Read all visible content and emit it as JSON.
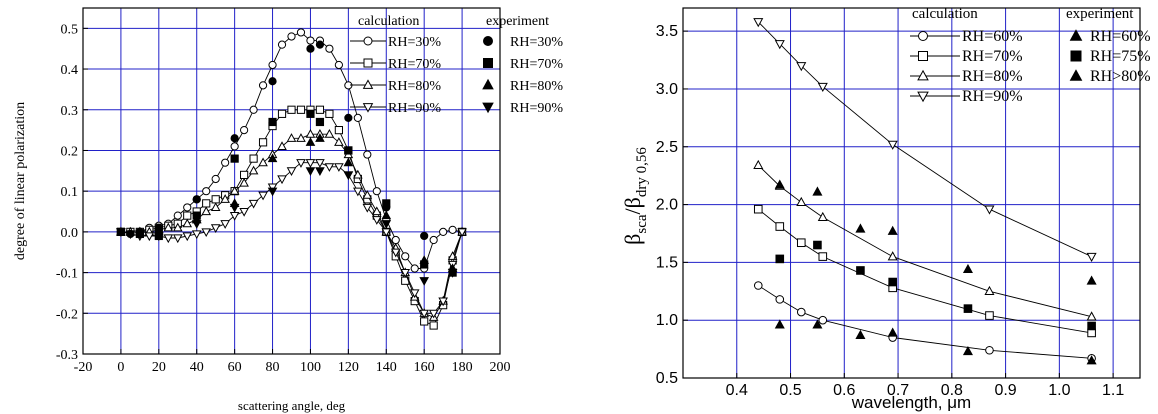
{
  "chart_data": [
    {
      "type": "line",
      "xlabel": "scattering angle, deg",
      "ylabel": "degree of linear polarization",
      "xlim": [
        -20,
        200
      ],
      "ylim": [
        -0.3,
        0.55
      ],
      "xticks": [
        -20,
        0,
        20,
        40,
        60,
        80,
        100,
        120,
        140,
        160,
        180,
        200
      ],
      "yticks": [
        -0.3,
        -0.2,
        -0.1,
        0.0,
        0.1,
        0.2,
        0.3,
        0.4,
        0.5
      ],
      "xtick_labels": [
        "-20",
        "0",
        "20",
        "40",
        "60",
        "80",
        "100",
        "120",
        "140",
        "160",
        "180",
        "200"
      ],
      "ytick_labels": [
        "-0.3",
        "-0.2",
        "-0.1",
        "0.0",
        "0.1",
        "0.2",
        "0.3",
        "0.4",
        "0.5"
      ],
      "grid": true,
      "legend_placement": "top-right",
      "legend_headers": [
        "calculation",
        "experiment"
      ],
      "series": [
        {
          "name": "RH=30%",
          "group": "calculation",
          "marker": "circle-open",
          "x": [
            0,
            5,
            10,
            15,
            20,
            25,
            30,
            35,
            40,
            45,
            50,
            55,
            60,
            65,
            70,
            75,
            80,
            85,
            90,
            95,
            100,
            105,
            110,
            115,
            120,
            125,
            130,
            135,
            140,
            145,
            150,
            155,
            160,
            165,
            170,
            175,
            180
          ],
          "y": [
            0.0,
            0.0,
            0.0,
            0.01,
            0.015,
            0.02,
            0.04,
            0.06,
            0.08,
            0.1,
            0.13,
            0.17,
            0.21,
            0.25,
            0.3,
            0.36,
            0.41,
            0.46,
            0.48,
            0.49,
            0.47,
            0.47,
            0.45,
            0.41,
            0.36,
            0.28,
            0.19,
            0.1,
            0.03,
            -0.02,
            -0.06,
            -0.09,
            -0.09,
            -0.02,
            0.0,
            0.005,
            0.0
          ]
        },
        {
          "name": "RH=70%",
          "group": "calculation",
          "marker": "square-open",
          "x": [
            0,
            5,
            10,
            15,
            20,
            25,
            30,
            35,
            40,
            45,
            50,
            55,
            60,
            65,
            70,
            75,
            80,
            85,
            90,
            95,
            100,
            105,
            110,
            115,
            120,
            125,
            130,
            135,
            140,
            145,
            150,
            155,
            160,
            165,
            170,
            175,
            180
          ],
          "y": [
            0.0,
            0.0,
            0.0,
            0.005,
            0.01,
            0.015,
            0.02,
            0.04,
            0.05,
            0.07,
            0.08,
            0.09,
            0.1,
            0.14,
            0.18,
            0.22,
            0.26,
            0.29,
            0.3,
            0.3,
            0.3,
            0.3,
            0.29,
            0.25,
            0.2,
            0.13,
            0.08,
            0.04,
            0.0,
            -0.06,
            -0.12,
            -0.17,
            -0.22,
            -0.23,
            -0.18,
            -0.07,
            0.0
          ]
        },
        {
          "name": "RH=80%",
          "group": "calculation",
          "marker": "triangle-up-open",
          "x": [
            0,
            5,
            10,
            15,
            20,
            25,
            30,
            35,
            40,
            45,
            50,
            55,
            60,
            65,
            70,
            75,
            80,
            85,
            90,
            95,
            100,
            105,
            110,
            115,
            120,
            125,
            130,
            135,
            140,
            145,
            150,
            155,
            160,
            165,
            170,
            175,
            180
          ],
          "y": [
            0.0,
            0.0,
            0.0,
            0.0,
            0.005,
            0.01,
            0.01,
            0.02,
            0.03,
            0.05,
            0.06,
            0.08,
            0.1,
            0.12,
            0.15,
            0.17,
            0.19,
            0.21,
            0.23,
            0.23,
            0.24,
            0.24,
            0.24,
            0.22,
            0.19,
            0.14,
            0.09,
            0.05,
            0.0,
            -0.04,
            -0.1,
            -0.16,
            -0.2,
            -0.21,
            -0.17,
            -0.06,
            0.0
          ]
        },
        {
          "name": "RH=90%",
          "group": "calculation",
          "marker": "triangle-down-open",
          "x": [
            0,
            5,
            10,
            15,
            20,
            25,
            30,
            35,
            40,
            45,
            50,
            55,
            60,
            65,
            70,
            75,
            80,
            85,
            90,
            95,
            100,
            105,
            110,
            115,
            120,
            125,
            130,
            135,
            140,
            145,
            150,
            155,
            160,
            165,
            170,
            175,
            180
          ],
          "y": [
            0.0,
            -0.005,
            -0.01,
            -0.01,
            -0.01,
            -0.015,
            -0.015,
            -0.01,
            -0.005,
            0.0,
            0.01,
            0.02,
            0.04,
            0.05,
            0.07,
            0.09,
            0.11,
            0.13,
            0.15,
            0.17,
            0.17,
            0.17,
            0.16,
            0.16,
            0.14,
            0.1,
            0.06,
            0.03,
            0.0,
            -0.05,
            -0.1,
            -0.15,
            -0.2,
            -0.2,
            -0.17,
            -0.08,
            0.0
          ]
        },
        {
          "name": "RH=30%",
          "group": "experiment",
          "marker": "circle",
          "x": [
            5,
            10,
            20,
            40,
            60,
            80,
            100,
            105,
            120,
            140,
            160
          ],
          "y": [
            -0.005,
            0.0,
            0.01,
            0.08,
            0.23,
            0.37,
            0.45,
            0.46,
            0.28,
            0.06,
            -0.01
          ]
        },
        {
          "name": "RH=70%",
          "group": "experiment",
          "marker": "square",
          "x": [
            0,
            10,
            20,
            40,
            60,
            80,
            100,
            105,
            120,
            140,
            160,
            175
          ],
          "y": [
            0.0,
            -0.005,
            -0.01,
            0.04,
            0.18,
            0.27,
            0.29,
            0.27,
            0.2,
            0.07,
            -0.08,
            -0.1
          ]
        },
        {
          "name": "RH=80%",
          "group": "experiment",
          "marker": "triangle-up",
          "x": [
            0,
            10,
            20,
            40,
            60,
            80,
            100,
            105,
            120,
            140,
            160,
            175
          ],
          "y": [
            0.0,
            0.0,
            0.0,
            0.03,
            0.07,
            0.18,
            0.22,
            0.23,
            0.17,
            0.04,
            -0.07,
            -0.09
          ]
        },
        {
          "name": "RH=90%",
          "group": "experiment",
          "marker": "triangle-down",
          "x": [
            0,
            10,
            20,
            40,
            60,
            80,
            100,
            105,
            120,
            140,
            160,
            175
          ],
          "y": [
            0.0,
            -0.005,
            0.0,
            0.02,
            0.06,
            0.1,
            0.15,
            0.15,
            0.14,
            0.02,
            -0.12,
            -0.1
          ]
        }
      ]
    },
    {
      "type": "line",
      "xlabel": "wavelength, μm",
      "ylabel_main": "β",
      "ylabel_sub1": "sca",
      "ylabel_slash": "/β",
      "ylabel_sub2": "dry 0,56",
      "xlim": [
        0.3,
        1.15
      ],
      "ylim": [
        0.5,
        3.7
      ],
      "xticks": [
        0.4,
        0.5,
        0.6,
        0.7,
        0.8,
        0.9,
        1.0,
        1.1
      ],
      "yticks": [
        0.5,
        1.0,
        1.5,
        2.0,
        2.5,
        3.0,
        3.5
      ],
      "xtick_labels": [
        "0.4",
        "0.5",
        "0.6",
        "0.7",
        "0.8",
        "0.9",
        "1.0",
        "1.1"
      ],
      "ytick_labels": [
        "0.5",
        "1.0",
        "1.5",
        "2.0",
        "2.5",
        "3.0",
        "3.5"
      ],
      "grid": true,
      "legend_placement": "top-right",
      "legend_headers": [
        "calculation",
        "experiment"
      ],
      "series": [
        {
          "name": "RH=60%",
          "group": "calculation",
          "marker": "circle-open",
          "x": [
            0.44,
            0.48,
            0.52,
            0.56,
            0.69,
            0.87,
            1.06
          ],
          "y": [
            1.3,
            1.18,
            1.07,
            1.0,
            0.85,
            0.74,
            0.67
          ]
        },
        {
          "name": "RH=70%",
          "group": "calculation",
          "marker": "square-open",
          "x": [
            0.44,
            0.48,
            0.52,
            0.56,
            0.69,
            0.87,
            1.06
          ],
          "y": [
            1.96,
            1.81,
            1.67,
            1.55,
            1.28,
            1.04,
            0.89
          ]
        },
        {
          "name": "RH=80%",
          "group": "calculation",
          "marker": "triangle-up-open",
          "x": [
            0.44,
            0.48,
            0.52,
            0.56,
            0.69,
            0.87,
            1.06
          ],
          "y": [
            2.34,
            2.16,
            2.02,
            1.89,
            1.55,
            1.25,
            1.03
          ]
        },
        {
          "name": "RH=90%",
          "group": "calculation",
          "marker": "triangle-down-open",
          "x": [
            0.44,
            0.48,
            0.52,
            0.56,
            0.69,
            0.87,
            1.06
          ],
          "y": [
            3.58,
            3.39,
            3.2,
            3.02,
            2.52,
            1.96,
            1.55
          ]
        },
        {
          "name": "RH=60%",
          "group": "experiment",
          "marker": "triangle-up",
          "x": [
            0.48,
            0.55,
            0.63,
            0.69,
            0.83,
            1.06
          ],
          "y": [
            0.96,
            0.96,
            0.87,
            0.89,
            0.73,
            0.65
          ]
        },
        {
          "name": "RH=75%",
          "group": "experiment",
          "marker": "square",
          "x": [
            0.48,
            0.55,
            0.63,
            0.69,
            0.83,
            1.06
          ],
          "y": [
            1.53,
            1.65,
            1.43,
            1.33,
            1.1,
            0.95
          ]
        },
        {
          "name": "RH>80%",
          "group": "experiment",
          "marker": "triangle-up",
          "x": [
            0.48,
            0.55,
            0.63,
            0.69,
            0.83,
            1.06
          ],
          "y": [
            2.17,
            2.11,
            1.79,
            1.77,
            1.44,
            1.34
          ]
        }
      ]
    }
  ]
}
